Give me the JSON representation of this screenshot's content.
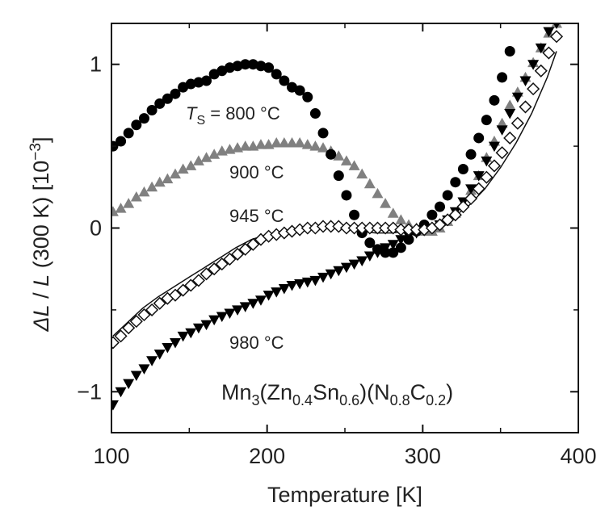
{
  "chart_data": {
    "type": "scatter",
    "title": "",
    "xlabel": "Temperature [K]",
    "ylabel": {
      "delta": "Δ",
      "l1": "L",
      "slash": " / ",
      "l2": "L",
      "rest": " (300 K) [10",
      "exp": "−3",
      "close": "]"
    },
    "xlim": [
      100,
      400
    ],
    "ylim": [
      -1.25,
      1.25
    ],
    "x_ticks": [
      100,
      200,
      300,
      400
    ],
    "y_ticks": [
      -1,
      0,
      1
    ],
    "x_tick_labels": [
      "100",
      "200",
      "300",
      "400"
    ],
    "y_tick_labels": [
      "−1",
      "0",
      "1"
    ],
    "grid": false,
    "colors": {
      "black": "#000000",
      "gray": "#808080",
      "open": "#ffffff"
    },
    "annotations": {
      "ts_T": "T",
      "ts_sub": "S",
      "ts_rest": " = 800 °C",
      "a900": "900 °C",
      "a945": "945 °C",
      "a980": "980 °C"
    },
    "formula": {
      "p1": "Mn",
      "s1": "3",
      "p2": "(Zn",
      "s2": "0.4",
      "p3": "Sn",
      "s3": "0.6",
      "p4": ")(N",
      "s4": "0.8",
      "p5": "C",
      "s5": "0.2",
      "p6": ")"
    },
    "series": [
      {
        "marker": "circle-filled",
        "x": [
          101,
          106,
          111,
          116,
          121,
          126,
          131,
          136,
          141,
          146,
          151,
          156,
          161,
          166,
          171,
          176,
          181,
          186,
          191,
          196,
          201,
          206,
          211,
          216,
          221,
          226,
          231,
          236,
          241,
          246,
          251,
          256,
          261,
          266,
          271,
          276,
          281,
          286,
          291,
          296,
          301,
          306,
          311,
          316,
          321,
          326,
          331,
          336,
          341,
          346,
          351,
          356
        ],
        "y": [
          0.5,
          0.53,
          0.58,
          0.63,
          0.67,
          0.72,
          0.76,
          0.79,
          0.82,
          0.86,
          0.88,
          0.89,
          0.9,
          0.94,
          0.96,
          0.98,
          0.99,
          1.0,
          1.0,
          0.99,
          0.98,
          0.94,
          0.9,
          0.86,
          0.84,
          0.8,
          0.7,
          0.58,
          0.45,
          0.32,
          0.2,
          0.08,
          -0.03,
          -0.09,
          -0.13,
          -0.15,
          -0.15,
          -0.12,
          -0.07,
          -0.02,
          0.02,
          0.08,
          0.13,
          0.2,
          0.28,
          0.36,
          0.45,
          0.55,
          0.66,
          0.78,
          0.92,
          1.08
        ]
      },
      {
        "marker": "triangle-up-gray",
        "x": [
          101,
          106,
          111,
          116,
          121,
          126,
          131,
          136,
          141,
          146,
          151,
          156,
          161,
          166,
          171,
          176,
          181,
          186,
          191,
          196,
          201,
          206,
          211,
          216,
          221,
          226,
          231,
          236,
          241,
          246,
          251,
          256,
          261,
          266,
          271,
          276,
          281,
          286,
          291,
          296,
          301,
          306,
          311,
          316,
          321,
          326,
          331,
          336,
          341,
          346,
          351,
          356,
          361,
          366,
          371,
          376,
          381,
          386
        ],
        "y": [
          0.1,
          0.12,
          0.15,
          0.19,
          0.22,
          0.25,
          0.28,
          0.3,
          0.33,
          0.36,
          0.38,
          0.41,
          0.43,
          0.45,
          0.47,
          0.48,
          0.49,
          0.5,
          0.5,
          0.51,
          0.51,
          0.52,
          0.52,
          0.52,
          0.52,
          0.51,
          0.5,
          0.49,
          0.47,
          0.44,
          0.41,
          0.38,
          0.33,
          0.27,
          0.21,
          0.15,
          0.09,
          0.05,
          0.02,
          0.0,
          -0.02,
          -0.02,
          0.0,
          0.04,
          0.09,
          0.15,
          0.23,
          0.32,
          0.43,
          0.53,
          0.64,
          0.75,
          0.83,
          0.92,
          1.01,
          1.1,
          1.19,
          1.25
        ]
      },
      {
        "marker": "diamond-open",
        "x": [
          101,
          106,
          111,
          116,
          121,
          126,
          131,
          136,
          141,
          146,
          151,
          156,
          161,
          166,
          171,
          176,
          181,
          186,
          191,
          196,
          201,
          206,
          211,
          216,
          221,
          226,
          231,
          236,
          241,
          246,
          251,
          256,
          261,
          266,
          271,
          276,
          281,
          286,
          291,
          296,
          301,
          306,
          311,
          316,
          321,
          326,
          331,
          336,
          341,
          346,
          351,
          356,
          361,
          366,
          371,
          376,
          381,
          386
        ],
        "y": [
          -0.7,
          -0.66,
          -0.61,
          -0.57,
          -0.53,
          -0.5,
          -0.46,
          -0.43,
          -0.41,
          -0.38,
          -0.35,
          -0.32,
          -0.28,
          -0.25,
          -0.22,
          -0.19,
          -0.16,
          -0.13,
          -0.1,
          -0.07,
          -0.05,
          -0.04,
          -0.03,
          -0.02,
          -0.01,
          0.0,
          0.0,
          0.01,
          0.01,
          0.01,
          0.0,
          0.0,
          0.0,
          0.0,
          0.0,
          0.0,
          0.0,
          -0.01,
          -0.01,
          -0.01,
          -0.01,
          0.0,
          0.02,
          0.05,
          0.08,
          0.13,
          0.18,
          0.24,
          0.31,
          0.38,
          0.46,
          0.55,
          0.64,
          0.74,
          0.85,
          0.96,
          1.07,
          1.17
        ]
      },
      {
        "marker": "triangle-down-filled",
        "x": [
          101,
          106,
          111,
          116,
          121,
          126,
          131,
          136,
          141,
          146,
          151,
          156,
          161,
          166,
          171,
          176,
          181,
          186,
          191,
          196,
          201,
          206,
          211,
          216,
          221,
          226,
          231,
          236,
          241,
          246,
          251,
          256,
          261,
          266,
          271,
          276,
          281,
          286,
          291,
          296,
          301,
          306,
          311,
          316,
          321,
          326,
          331,
          336,
          341,
          346,
          351,
          356,
          361,
          366,
          371,
          376,
          381,
          386
        ],
        "y": [
          -1.08,
          -1.0,
          -0.95,
          -0.9,
          -0.86,
          -0.81,
          -0.77,
          -0.73,
          -0.7,
          -0.66,
          -0.64,
          -0.61,
          -0.59,
          -0.56,
          -0.54,
          -0.52,
          -0.5,
          -0.48,
          -0.46,
          -0.44,
          -0.41,
          -0.39,
          -0.37,
          -0.35,
          -0.34,
          -0.33,
          -0.32,
          -0.3,
          -0.28,
          -0.26,
          -0.24,
          -0.22,
          -0.2,
          -0.17,
          -0.15,
          -0.12,
          -0.1,
          -0.07,
          -0.05,
          -0.03,
          -0.01,
          0.0,
          0.02,
          0.05,
          0.1,
          0.16,
          0.24,
          0.32,
          0.41,
          0.5,
          0.6,
          0.7,
          0.8,
          0.9,
          1.0,
          1.1,
          1.2,
          1.25
        ]
      }
    ],
    "fit_line": {
      "x": [
        101,
        110,
        120,
        130,
        140,
        150,
        160,
        170,
        180,
        190,
        200,
        210,
        220,
        230,
        240,
        250,
        260,
        270,
        280,
        290,
        300,
        310,
        320,
        330,
        340,
        350,
        360,
        370,
        380,
        386
      ],
      "y": [
        -0.66,
        -0.58,
        -0.49,
        -0.42,
        -0.36,
        -0.3,
        -0.24,
        -0.18,
        -0.12,
        -0.07,
        -0.04,
        -0.02,
        -0.02,
        0.0,
        0.02,
        0.0,
        -0.02,
        -0.03,
        -0.03,
        -0.02,
        -0.01,
        0.02,
        0.07,
        0.14,
        0.24,
        0.37,
        0.52,
        0.7,
        0.92,
        1.08
      ]
    }
  }
}
